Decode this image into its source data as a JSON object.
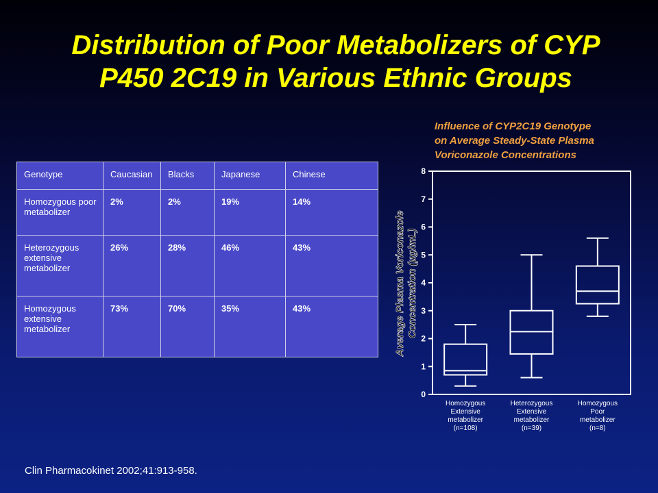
{
  "slide": {
    "title_lines": [
      "Distribution of Poor Metabolizers of CYP",
      "P450 2C19 in Various Ethnic Groups"
    ],
    "citation": "Clin Pharmacokinet 2002;41:913-958."
  },
  "table": {
    "headers": [
      "Genotype",
      "Caucasian",
      "Blacks",
      "Japanese",
      "Chinese"
    ],
    "rows": [
      [
        "Homozygous poor metabolizer",
        "2%",
        "2%",
        "19%",
        "14%"
      ],
      [
        "Heterozygous extensive metabolizer",
        "26%",
        "28%",
        "46%",
        "43%"
      ],
      [
        "Homozygous extensive metabolizer",
        "73%",
        "70%",
        "35%",
        "43%"
      ]
    ]
  },
  "colors": {
    "title": "#ffff00",
    "chart_title": "#f0a040",
    "table_bg": "#4848c8",
    "plot_line": "#ffffff"
  },
  "chart_data": {
    "type": "box",
    "title_lines": [
      "Influence of CYP2C19 Genotype",
      "on Average Steady-State Plasma",
      "Voriconazole Concentrations"
    ],
    "ylabel_lines": [
      "Average Plasma Voriconazole",
      "Concentration (µg/mL)"
    ],
    "ylim": [
      0,
      8
    ],
    "yticks": [
      0,
      1,
      2,
      3,
      4,
      5,
      6,
      7,
      8
    ],
    "grid": false,
    "categories": [
      [
        "Homozygous",
        "Extensive",
        "metabolizer",
        "(n=108)"
      ],
      [
        "Heterozygous",
        "Extensive",
        "metabolizer",
        "(n=39)"
      ],
      [
        "Homozygous",
        "Poor",
        "metabolizer",
        "(n=8)"
      ]
    ],
    "boxes": [
      {
        "whisker_low": 0.3,
        "q1": 0.7,
        "median": 0.85,
        "q3": 1.8,
        "whisker_high": 2.5
      },
      {
        "whisker_low": 0.6,
        "q1": 1.45,
        "median": 2.25,
        "q3": 3.0,
        "whisker_high": 5.0
      },
      {
        "whisker_low": 2.8,
        "q1": 3.25,
        "median": 3.7,
        "q3": 4.6,
        "whisker_high": 5.6
      }
    ]
  }
}
